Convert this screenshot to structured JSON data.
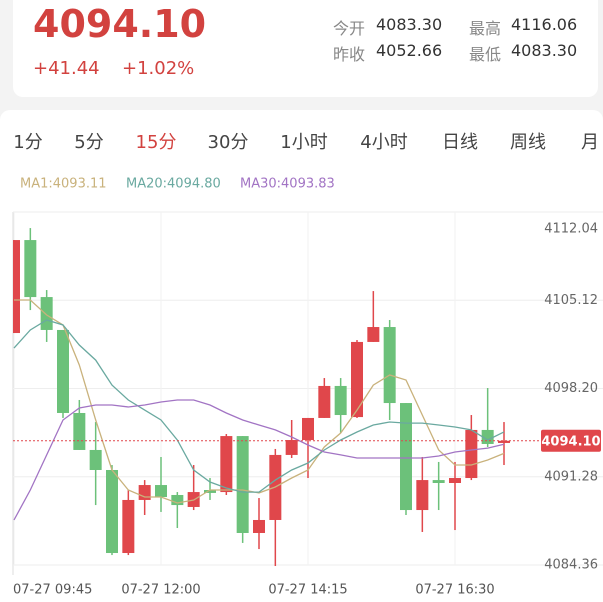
{
  "header": {
    "price": "4094.10",
    "change": "+41.44",
    "change_pct": "+1.02%",
    "stats": [
      {
        "label": "今开",
        "value": "4083.30"
      },
      {
        "label": "最高",
        "value": "4116.06"
      },
      {
        "label": "昨收",
        "value": "4052.66"
      },
      {
        "label": "最低",
        "value": "4083.30"
      }
    ]
  },
  "tabs": {
    "items": [
      "1分",
      "5分",
      "15分",
      "30分",
      "1小时",
      "4小时",
      "日线",
      "周线",
      "月"
    ],
    "active": 2
  },
  "chart_data": {
    "type": "candlestick",
    "categories": [
      "07-27 09:45",
      null,
      null,
      null,
      null,
      null,
      null,
      null,
      null,
      "07-27 12:00",
      null,
      null,
      null,
      null,
      null,
      null,
      null,
      null,
      "07-27 14:15",
      null,
      null,
      null,
      null,
      null,
      null,
      null,
      null,
      "07-27 16:30",
      null,
      null,
      null
    ],
    "open": [
      4102.55,
      4109.84,
      4105.37,
      4102.79,
      4096.28,
      4093.38,
      4091.81,
      4085.3,
      4089.46,
      4090.63,
      4089.85,
      4088.91,
      4090.24,
      4090.08,
      4094.47,
      4086.87,
      4087.89,
      4092.99,
      4094.16,
      4095.89,
      4098.4,
      4095.96,
      4101.85,
      4103.02,
      4097.06,
      4088.67,
      4091.02,
      4090.79,
      4091.18,
      4094.95,
      4093.93
    ],
    "high": [
      4109.84,
      4110.78,
      4105.92,
      4102.79,
      4097.3,
      4095.57,
      4092.2,
      4090.24,
      4091.02,
      4092.83,
      4090.08,
      4092.2,
      4091.18,
      4094.63,
      4094.47,
      4089.61,
      4093.46,
      4095.73,
      4095.89,
      4099.02,
      4099.02,
      4102.0,
      4105.84,
      4103.57,
      4097.06,
      4092.83,
      4092.44,
      4092.44,
      4096.12,
      4098.24,
      4095.57
    ],
    "low": [
      4102.55,
      4104.35,
      4101.85,
      4095.89,
      4093.38,
      4089.06,
      4085.14,
      4085.14,
      4088.28,
      4088.52,
      4087.26,
      4088.67,
      4089.46,
      4089.85,
      4086.09,
      4085.61,
      4084.28,
      4092.75,
      4091.18,
      4095.89,
      4094.71,
      4095.89,
      4101.85,
      4095.73,
      4088.28,
      4086.95,
      4088.67,
      4087.1,
      4091.02,
      4093.61,
      4092.2
    ],
    "close": [
      4109.84,
      4105.37,
      4102.79,
      4096.28,
      4093.38,
      4091.81,
      4085.3,
      4089.46,
      4090.63,
      4089.69,
      4089.06,
      4090.08,
      4090.01,
      4094.47,
      4086.87,
      4087.89,
      4092.99,
      4094.16,
      4095.89,
      4098.4,
      4096.12,
      4101.85,
      4103.02,
      4097.06,
      4088.67,
      4091.02,
      4090.79,
      4091.18,
      4094.95,
      4093.85,
      4094.1
    ],
    "up_color": "#e0474b",
    "down_color": "#6cc17a",
    "series": [
      {
        "name": "MA1:4093.11",
        "color": "#c9b27c",
        "values": [
          4105.14,
          4105.14,
          4103.96,
          4103.18,
          4100.04,
          4095.73,
          4091.81,
          4090.24,
          4089.69,
          4089.69,
          4089.22,
          4089.46,
          4090.24,
          4090.24,
          4090.24,
          4090.01,
          4090.48,
          4091.18,
          4091.81,
          4093.61,
          4094.71,
          4096.51,
          4098.47,
          4099.26,
          4098.87,
          4096.12,
          4093.38,
          4092.2,
          4092.2,
          4092.59,
          4093.11
        ]
      },
      {
        "name": "MA20:4094.80",
        "color": "#6aa9a0",
        "values": [
          4101.37,
          4102.79,
          4103.57,
          4103.18,
          4101.61,
          4100.43,
          4098.47,
          4097.3,
          4096.51,
          4095.73,
          4094.16,
          4091.81,
          4090.87,
          4090.4,
          4090.08,
          4090.08,
          4091.02,
          4091.81,
          4092.36,
          4093.38,
          4094.16,
          4094.79,
          4095.34,
          4095.57,
          4095.49,
          4095.49,
          4095.34,
          4095.18,
          4094.95,
          4094.16,
          4094.8
        ]
      },
      {
        "name": "MA30:4093.83",
        "color": "#a274c4",
        "values": [
          4087.89,
          4090.24,
          4092.99,
          4095.73,
          4096.67,
          4096.91,
          4096.91,
          4096.75,
          4096.91,
          4097.14,
          4097.3,
          4097.3,
          4096.91,
          4096.28,
          4095.73,
          4095.34,
          4094.95,
          4094.4,
          4093.77,
          4093.22,
          4092.99,
          4092.75,
          4092.75,
          4092.75,
          4092.75,
          4092.75,
          4092.91,
          4093.22,
          4093.38,
          4093.53,
          4093.83
        ]
      }
    ],
    "last_price": {
      "value": 4094.1,
      "label": "4094.10"
    },
    "ylim": [
      4084.36,
      4112.04
    ],
    "yticks": [
      4112.04,
      4105.12,
      {
        "value": 4098.2,
        "label": "4098.20"
      },
      4091.28,
      4084.36
    ],
    "grid": true
  }
}
